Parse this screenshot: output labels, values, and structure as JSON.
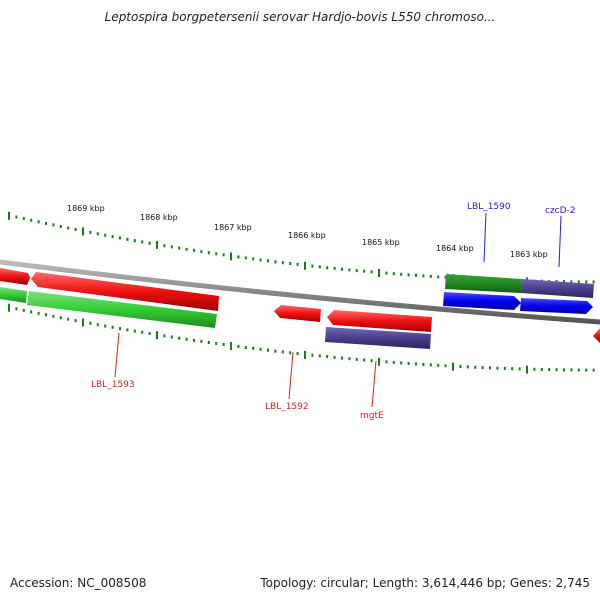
{
  "header": {
    "title": "Leptospira borgpetersenii serovar Hardjo-bovis L550 chromoso..."
  },
  "footer": {
    "accession": "Accession: NC_008508",
    "summary": "Topology: circular; Length: 3,614,446 bp; Genes: 2,745"
  },
  "ruler": {
    "labels": [
      "1869 kbp",
      "1868 kbp",
      "1867 kbp",
      "1866 kbp",
      "1865 kbp",
      "1864 kbp",
      "1863 kbp"
    ]
  },
  "gene_labels": [
    {
      "name": "LBL_1590",
      "color": "#2222cc"
    },
    {
      "name": "czcD-2",
      "color": "#2222cc"
    },
    {
      "name": "LBL_1593",
      "color": "#cc2222"
    },
    {
      "name": "LBL_1592",
      "color": "#cc2222"
    },
    {
      "name": "mgtE",
      "color": "#cc2222"
    }
  ],
  "colors": {
    "backbone": "#888888",
    "tick": "#1a7a1a",
    "forward_strand": "#0000ee",
    "reverse_strand": "#ee1111",
    "cds_green_dark": "#228b22",
    "cds_green_light": "#33cc33",
    "cds_purple": "#4a3f8c"
  }
}
